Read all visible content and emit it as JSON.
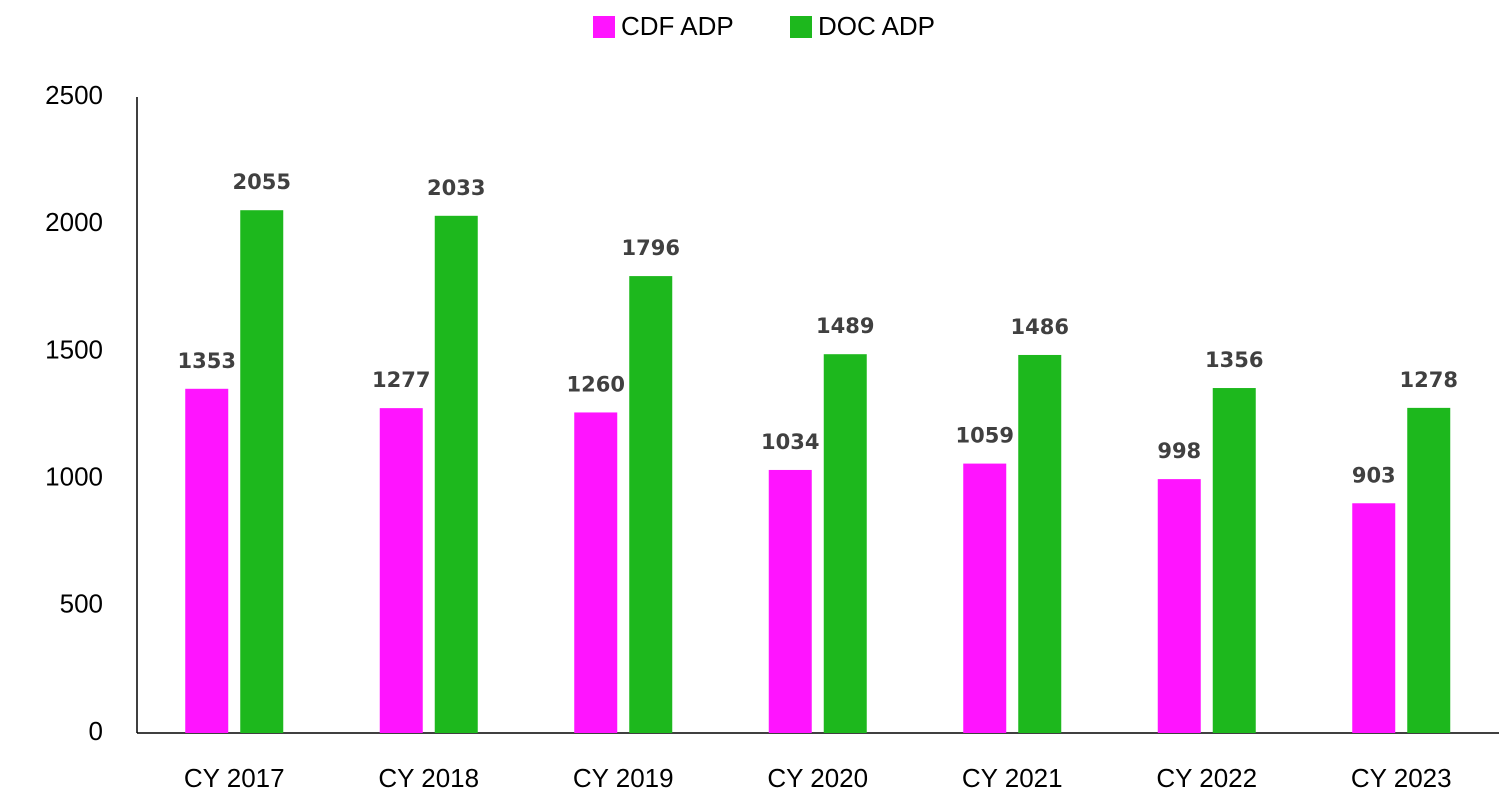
{
  "chart_data": {
    "type": "bar",
    "categories": [
      "CY 2017",
      "CY 2018",
      "CY 2019",
      "CY 2020",
      "CY 2021",
      "CY 2022",
      "CY 2023"
    ],
    "series": [
      {
        "name": "CDF ADP",
        "color": "#ff14ff",
        "values": [
          1353,
          1277,
          1260,
          1034,
          1059,
          998,
          903
        ]
      },
      {
        "name": "DOC ADP",
        "color": "#1db81d",
        "values": [
          2055,
          2033,
          1796,
          1489,
          1486,
          1356,
          1278
        ]
      }
    ],
    "ylim": [
      0,
      2500
    ],
    "yticks": [
      0,
      500,
      1000,
      1500,
      2000,
      2500
    ],
    "grid": false,
    "legend": "top"
  }
}
